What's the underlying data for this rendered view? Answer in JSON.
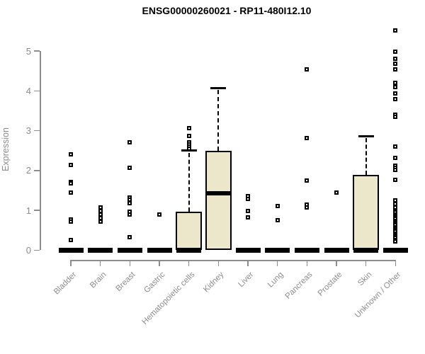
{
  "chart": {
    "title": "ENSG00000260021 - RP11-480I12.10",
    "ylabel": "Expression"
  },
  "chart_data": {
    "type": "boxplot",
    "title": "ENSG00000260021 - RP11-480I12.10",
    "xlabel": "",
    "ylabel": "Expression",
    "ylim": [
      0,
      5.6
    ],
    "yticks": [
      0,
      1,
      2,
      3,
      4,
      5
    ],
    "grid": false,
    "legend": false,
    "colors": {
      "box_fill": "#ece7cb",
      "box_border": "#000000",
      "axis": "#8c8c8c",
      "title": "#000000"
    },
    "categories": [
      "Bladder",
      "Brain",
      "Breast",
      "Gastric",
      "Hematopoietic cells",
      "Kidney",
      "Liver",
      "Lung",
      "Pancreas",
      "Prostate",
      "Skin",
      "Unknown / Other"
    ],
    "series": [
      {
        "name": "Bladder",
        "q1": 0,
        "median": 0,
        "q3": 0,
        "whisker_low": 0,
        "whisker_high": 0,
        "outliers": [
          2.4,
          2.14,
          1.71,
          1.67,
          1.44,
          0.77,
          0.72,
          0.25
        ]
      },
      {
        "name": "Brain",
        "q1": 0,
        "median": 0,
        "q3": 0,
        "whisker_low": 0,
        "whisker_high": 0,
        "outliers": [
          1.07,
          0.98,
          0.89,
          0.8,
          0.71
        ]
      },
      {
        "name": "Breast",
        "q1": 0,
        "median": 0,
        "q3": 0,
        "whisker_low": 0,
        "whisker_high": 0,
        "outliers": [
          2.7,
          2.07,
          1.33,
          1.26,
          1.18,
          0.97,
          0.9,
          0.32
        ]
      },
      {
        "name": "Gastric",
        "q1": 0,
        "median": 0,
        "q3": 0,
        "whisker_low": 0,
        "whisker_high": 0,
        "outliers": [
          0.9
        ]
      },
      {
        "name": "Hematopoietic cells",
        "q1": 0,
        "median": 0,
        "q3": 0.96,
        "whisker_low": 0,
        "whisker_high": 2.5,
        "outliers": [
          3.07,
          2.87,
          2.7,
          2.65,
          2.61,
          2.54
        ]
      },
      {
        "name": "Kidney",
        "q1": 0,
        "median": 1.42,
        "q3": 2.49,
        "whisker_low": 0,
        "whisker_high": 4.07,
        "outliers": []
      },
      {
        "name": "Liver",
        "q1": 0,
        "median": 0,
        "q3": 0,
        "whisker_low": 0,
        "whisker_high": 0,
        "outliers": [
          1.35,
          1.29,
          0.98,
          0.82
        ]
      },
      {
        "name": "Lung",
        "q1": 0,
        "median": 0,
        "q3": 0,
        "whisker_low": 0,
        "whisker_high": 0,
        "outliers": [
          1.1,
          0.76
        ]
      },
      {
        "name": "Pancreas",
        "q1": 0,
        "median": 0,
        "q3": 0,
        "whisker_low": 0,
        "whisker_high": 0,
        "outliers": [
          4.54,
          2.81,
          1.74,
          1.14,
          1.08
        ]
      },
      {
        "name": "Prostate",
        "q1": 0,
        "median": 0,
        "q3": 0,
        "whisker_low": 0,
        "whisker_high": 0,
        "outliers": [
          1.45
        ]
      },
      {
        "name": "Skin",
        "q1": 0,
        "median": 0,
        "q3": 1.89,
        "whisker_low": 0,
        "whisker_high": 2.86,
        "outliers": []
      },
      {
        "name": "Unknown / Other",
        "q1": 0,
        "median": 0,
        "q3": 0,
        "whisker_low": 0,
        "whisker_high": 0,
        "outliers": [
          5.52,
          4.99,
          4.81,
          4.68,
          4.54,
          4.2,
          4.1,
          3.94,
          3.79,
          3.4,
          3.35,
          2.6,
          2.32,
          2.13,
          2.07,
          2.02,
          1.77,
          1.25,
          1.16,
          1.08,
          0.98,
          0.94,
          0.9,
          0.86,
          0.82,
          0.78,
          0.74,
          0.7,
          0.66,
          0.62,
          0.58,
          0.54,
          0.5,
          0.46,
          0.42,
          0.38,
          0.34,
          0.3,
          0.26,
          0.21
        ]
      }
    ]
  }
}
